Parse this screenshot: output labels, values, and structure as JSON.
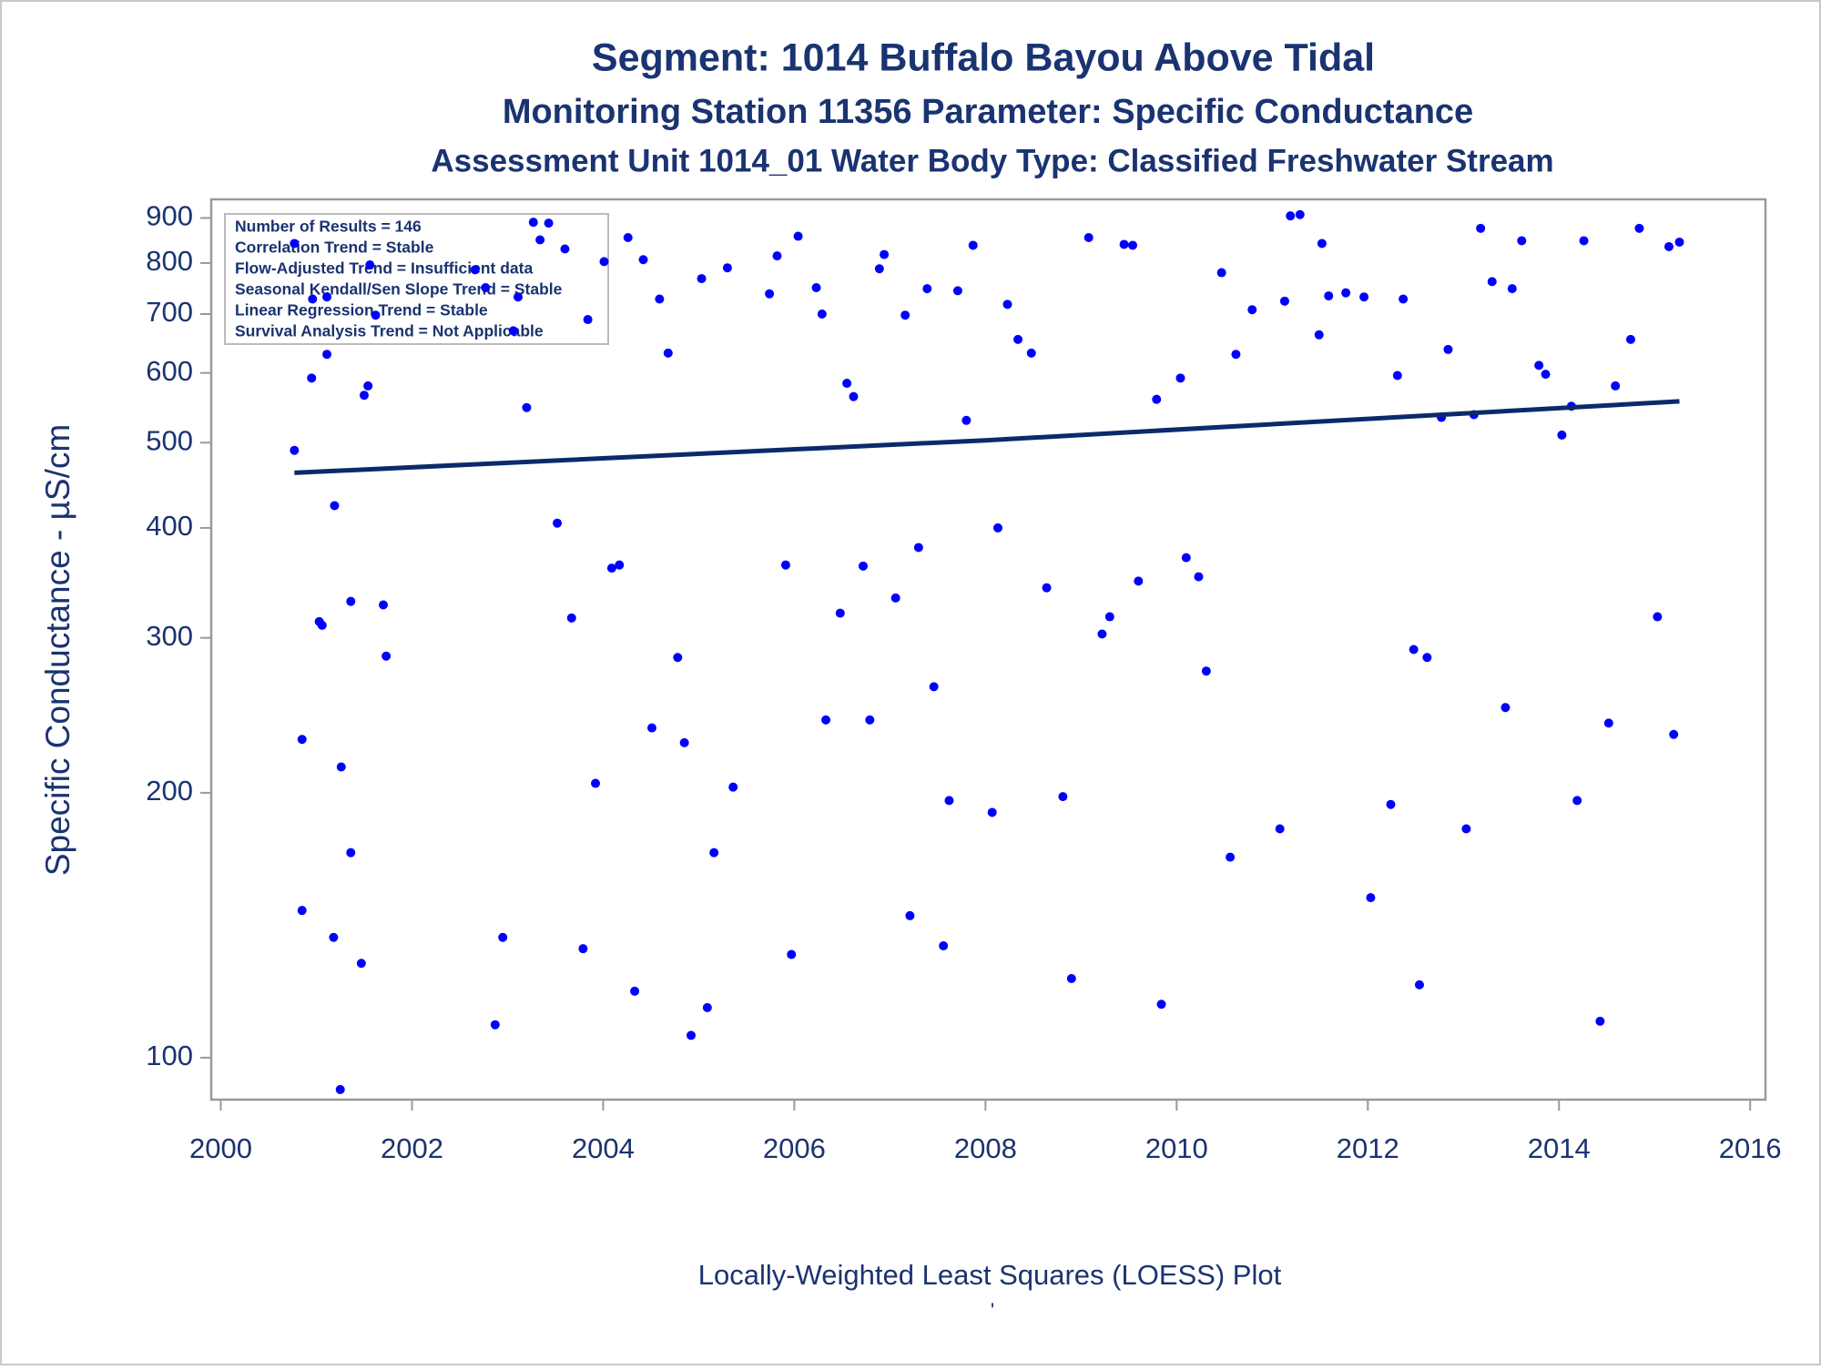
{
  "chart_data": {
    "type": "scatter",
    "title": "Segment: 1014  Buffalo Bayou Above Tidal",
    "subtitle": "Monitoring Station 11356 Parameter: Specific Conductance",
    "subtitle2": "Assessment Unit 1014_01   Water Body Type: Classified Freshwater Stream",
    "ylabel": "Specific Conductance -  µS/cm",
    "footnote": "Locally-Weighted Least Squares (LOESS) Plot",
    "footnote_mark": "'",
    "annotations": [
      "Number of Results = 146",
      "Correlation Trend = Stable",
      "Flow-Adjusted Trend = Insufficient data",
      "Seasonal Kendall/Sen Slope Trend = Stable",
      "Linear Regression Trend = Stable",
      "Survival Analysis Trend = Not Applicable"
    ],
    "xlim": [
      1999.9,
      2016.16
    ],
    "xticks": [
      2000,
      2002,
      2004,
      2006,
      2008,
      2010,
      2012,
      2014,
      2016
    ],
    "ylim": [
      89.6,
      945
    ],
    "yticks": [
      100,
      200,
      300,
      400,
      500,
      600,
      700,
      800,
      900
    ],
    "log_y": true,
    "grid": false,
    "series": [
      {
        "type": "scatter",
        "color": "#0000ff",
        "x": [
          2000.77,
          2000.77,
          2000.85,
          2000.85,
          2000.95,
          2000.96,
          2001.03,
          2001.06,
          2001.11,
          2001.11,
          2001.18,
          2001.19,
          2001.26,
          2001.25,
          2001.36,
          2001.36,
          2001.47,
          2001.5,
          2001.54,
          2001.56,
          2001.62,
          2001.7,
          2001.73,
          2002.66,
          2002.77,
          2002.87,
          2002.95,
          2003.06,
          2003.11,
          2003.2,
          2003.27,
          2003.34,
          2003.43,
          2003.52,
          2003.6,
          2003.67,
          2003.79,
          2003.84,
          2003.92,
          2004.01,
          2004.09,
          2004.17,
          2004.26,
          2004.33,
          2004.42,
          2004.51,
          2004.59,
          2004.68,
          2004.78,
          2004.85,
          2004.92,
          2005.03,
          2005.09,
          2005.16,
          2005.3,
          2005.36,
          2005.74,
          2005.82,
          2005.91,
          2005.97,
          2006.04,
          2006.23,
          2006.29,
          2006.33,
          2006.48,
          2006.55,
          2006.62,
          2006.72,
          2006.79,
          2006.89,
          2006.94,
          2007.06,
          2007.16,
          2007.21,
          2007.3,
          2007.39,
          2007.46,
          2007.56,
          2007.62,
          2007.71,
          2007.8,
          2007.87,
          2008.07,
          2008.13,
          2008.23,
          2008.34,
          2008.48,
          2008.64,
          2008.81,
          2008.9,
          2009.08,
          2009.22,
          2009.3,
          2009.45,
          2009.54,
          2009.6,
          2009.79,
          2009.84,
          2010.04,
          2010.1,
          2010.23,
          2010.31,
          2010.47,
          2010.56,
          2010.62,
          2010.79,
          2011.08,
          2011.13,
          2011.19,
          2011.29,
          2011.49,
          2011.52,
          2011.59,
          2011.77,
          2011.96,
          2012.03,
          2012.24,
          2012.31,
          2012.37,
          2012.48,
          2012.54,
          2012.62,
          2012.77,
          2012.84,
          2013.03,
          2013.11,
          2013.18,
          2013.3,
          2013.44,
          2013.51,
          2013.61,
          2013.79,
          2013.86,
          2014.03,
          2014.13,
          2014.19,
          2014.26,
          2014.43,
          2014.52,
          2014.59,
          2014.75,
          2014.84,
          2015.03,
          2015.15,
          2015.2,
          2015.26
        ],
        "values": [
          490,
          842,
          230,
          147,
          592,
          728,
          313,
          310,
          630,
          732,
          137,
          424,
          214,
          92,
          330,
          171,
          128,
          566,
          580,
          796,
          698,
          327,
          286,
          786,
          750,
          109,
          137,
          670,
          732,
          548,
          890,
          850,
          888,
          405,
          830,
          316,
          133,
          690,
          205,
          803,
          360,
          363,
          855,
          119,
          807,
          237,
          728,
          632,
          285,
          228,
          106,
          768,
          114,
          171,
          790,
          203,
          738,
          815,
          363,
          131,
          858,
          750,
          700,
          242,
          320,
          584,
          564,
          362,
          242,
          788,
          818,
          333,
          698,
          145,
          380,
          748,
          264,
          134,
          196,
          744,
          530,
          838,
          190,
          400,
          718,
          655,
          632,
          342,
          198,
          123,
          855,
          303,
          317,
          840,
          838,
          348,
          560,
          115,
          592,
          370,
          352,
          275,
          780,
          169,
          630,
          708,
          182,
          724,
          905,
          908,
          663,
          842,
          734,
          740,
          732,
          152,
          194,
          596,
          728,
          291,
          121,
          285,
          534,
          638,
          182,
          538,
          876,
          762,
          250,
          748,
          848,
          612,
          598,
          510,
          550,
          196,
          848,
          110,
          240,
          580,
          655,
          876,
          317,
          835,
          233,
          845
        ]
      },
      {
        "type": "line",
        "color": "#0b2a6b",
        "x": [
          2000.77,
          2008,
          2015.26
        ],
        "values": [
          462,
          503,
          557
        ]
      }
    ]
  }
}
